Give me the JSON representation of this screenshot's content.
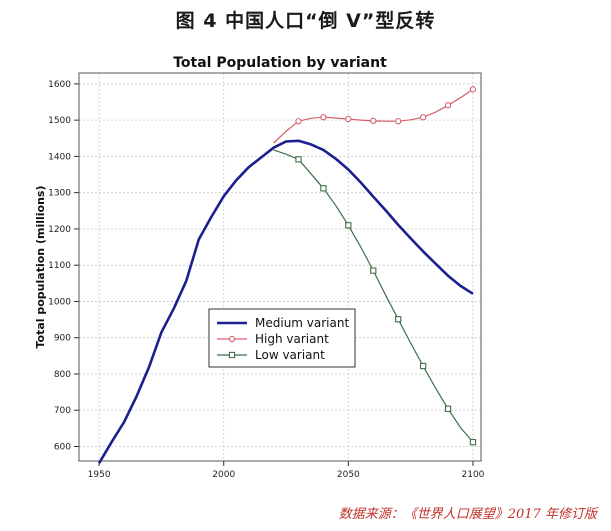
{
  "caption": "图 4    中国人口“倒 V”型反转",
  "source": "数据来源：《世界人口展望》2017 年修订版",
  "chart_data": {
    "type": "line",
    "title": "Total Population by variant",
    "xlabel": "",
    "ylabel": "Total population (millions)",
    "xlim": [
      1950,
      2100
    ],
    "ylim": [
      560,
      1630
    ],
    "x_ticks": [
      1950,
      2000,
      2050,
      2100
    ],
    "y_ticks": [
      600,
      700,
      800,
      900,
      1000,
      1100,
      1200,
      1300,
      1400,
      1500,
      1600
    ],
    "grid": true,
    "legend_position": "lower-center",
    "series": [
      {
        "name": "Medium variant",
        "color": "#1c1f8f",
        "marker": "none",
        "x": [
          1950,
          1955,
          1960,
          1965,
          1970,
          1975,
          1980,
          1985,
          1990,
          1995,
          2000,
          2005,
          2010,
          2015,
          2020,
          2025,
          2030,
          2035,
          2040,
          2045,
          2050,
          2055,
          2060,
          2065,
          2070,
          2075,
          2080,
          2085,
          2090,
          2095,
          2100
        ],
        "y": [
          554,
          612,
          667,
          738,
          818,
          915,
          981,
          1057,
          1171,
          1233,
          1290,
          1334,
          1370,
          1397,
          1424,
          1441,
          1443,
          1433,
          1418,
          1393,
          1364,
          1328,
          1289,
          1251,
          1211,
          1174,
          1138,
          1104,
          1071,
          1043,
          1021
        ]
      },
      {
        "name": "High variant",
        "color": "#d6606a",
        "marker": "circle",
        "x": [
          2020,
          2025,
          2030,
          2035,
          2040,
          2045,
          2050,
          2055,
          2060,
          2065,
          2070,
          2075,
          2080,
          2085,
          2090,
          2095,
          2100
        ],
        "y": [
          1437,
          1469,
          1497,
          1505,
          1508,
          1506,
          1503,
          1500,
          1498,
          1497,
          1497,
          1501,
          1508,
          1522,
          1541,
          1562,
          1585
        ]
      },
      {
        "name": "Low variant",
        "color": "#3f6f47",
        "marker": "square",
        "x": [
          2020,
          2025,
          2030,
          2035,
          2040,
          2045,
          2050,
          2055,
          2060,
          2065,
          2070,
          2075,
          2080,
          2085,
          2090,
          2095,
          2100
        ],
        "y": [
          1418,
          1406,
          1392,
          1352,
          1312,
          1264,
          1210,
          1150,
          1085,
          1017,
          951,
          885,
          822,
          761,
          704,
          652,
          612
        ]
      }
    ]
  }
}
